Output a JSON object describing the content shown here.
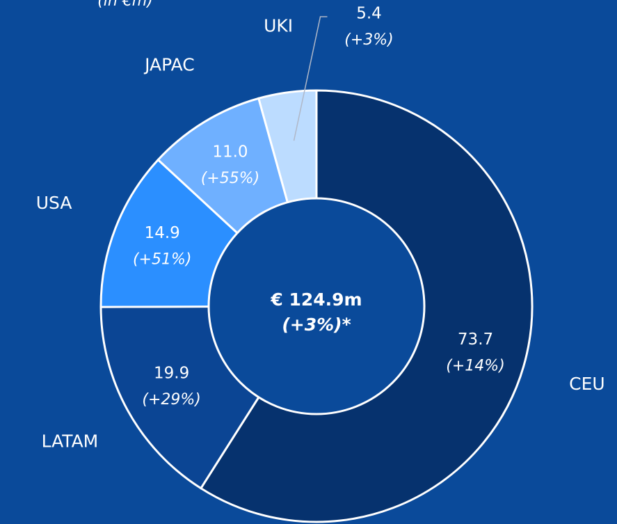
{
  "chart_data": {
    "type": "donut",
    "subtitle": "(in €m)",
    "categories": [
      "CEU",
      "LATAM",
      "USA",
      "JAPAC",
      "UKI"
    ],
    "values": [
      73.7,
      19.9,
      14.9,
      11.0,
      5.4
    ],
    "value_labels": [
      "73.7",
      "19.9",
      "14.9",
      "11.0",
      "5.4"
    ],
    "changes": [
      "(+14%)",
      "(+29%)",
      "(+51%)",
      "(+55%)",
      "(+3%)"
    ],
    "colors": [
      "#06326e",
      "#0b4594",
      "#2b8fff",
      "#6fb0ff",
      "#bcdcff"
    ],
    "center_label": "€ 124.9m",
    "center_sublabel": "(+3%)*"
  }
}
